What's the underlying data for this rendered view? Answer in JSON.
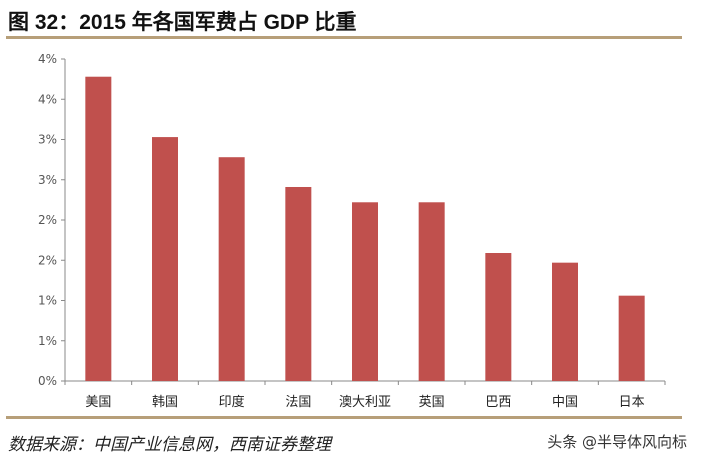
{
  "title": "图 32：2015 年各国军费占 GDP 比重",
  "source": "数据来源：中国产业信息网，西南证券整理",
  "watermark": "头条 @半导体风向标",
  "chart_data": {
    "type": "bar",
    "title": "",
    "xlabel": "",
    "ylabel": "",
    "categories": [
      "美国",
      "韩国",
      "印度",
      "法国",
      "澳大利亚",
      "英国",
      "巴西",
      "中国",
      "日本"
    ],
    "values": [
      3.78,
      3.03,
      2.78,
      2.41,
      2.22,
      2.22,
      1.59,
      1.47,
      1.06
    ],
    "unit": "%",
    "ylim": [
      0,
      4
    ],
    "y_ticks": [
      0,
      0.5,
      1,
      1.5,
      2,
      2.5,
      3,
      3.5,
      4
    ],
    "y_tick_labels": [
      "0%",
      "1%",
      "1%",
      "2%",
      "2%",
      "3%",
      "3%",
      "4%",
      "4%"
    ],
    "grid": false,
    "legend": "none",
    "bar_color": "#c0504d"
  }
}
